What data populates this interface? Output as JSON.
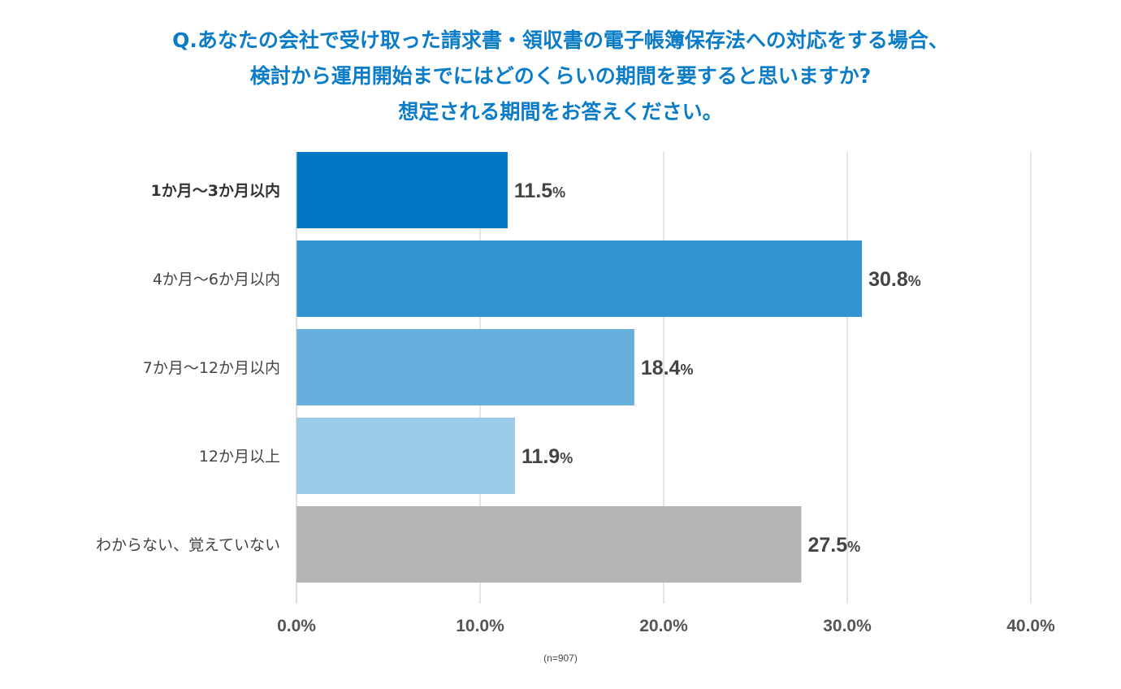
{
  "title_lines": [
    "Q.あなたの会社で受け取った請求書・領収書の電子帳簿保存法への対応をする場合、",
    "検討から運用開始までにはどのくらいの期間を要すると思いますか?",
    "想定される期間をお答えください。"
  ],
  "note": "(n=907)",
  "chart_data": {
    "type": "bar",
    "orientation": "horizontal",
    "categories": [
      "1か月〜3か月以内",
      "4か月〜6か月以内",
      "7か月〜12か月以内",
      "12か月以上",
      "わからない、覚えていない"
    ],
    "values": [
      11.5,
      30.8,
      18.4,
      11.9,
      27.5
    ],
    "value_labels": [
      "11.5",
      "30.8",
      "18.4",
      "11.9",
      "27.5"
    ],
    "value_unit": "%",
    "colors": [
      "#0077c4",
      "#3394d1",
      "#66afdd",
      "#9ccbea",
      "#b5b5b5"
    ],
    "xlim": [
      0,
      40
    ],
    "xticks": [
      "0.0%",
      "10.0%",
      "20.0%",
      "30.0%",
      "40.0%"
    ],
    "xtick_values": [
      0,
      10,
      20,
      30,
      40
    ],
    "grid": true,
    "highlight_index": 0
  }
}
